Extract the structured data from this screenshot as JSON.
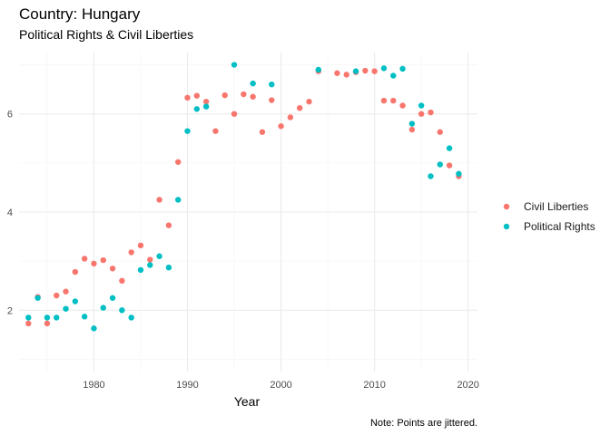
{
  "chart_data": {
    "type": "scatter",
    "title": "Country: Hungary",
    "subtitle": "Political Rights & Civil Liberties",
    "xlabel": "Year",
    "ylabel": "",
    "caption": "Note: Points are jittered.",
    "xlim": [
      1972,
      2021
    ],
    "ylim": [
      0.75,
      7.25
    ],
    "xticks": [
      1980,
      1990,
      2000,
      2010,
      2020
    ],
    "yticks": [
      2,
      4,
      6
    ],
    "grid": true,
    "legend_position": "right",
    "series": [
      {
        "name": "Civil Liberties",
        "color": "#F8766D",
        "points": [
          [
            1973,
            1.73
          ],
          [
            1974,
            2.27
          ],
          [
            1975,
            1.73
          ],
          [
            1976,
            2.3
          ],
          [
            1977,
            2.38
          ],
          [
            1978,
            2.78
          ],
          [
            1979,
            3.05
          ],
          [
            1980,
            2.95
          ],
          [
            1981,
            3.02
          ],
          [
            1982,
            2.85
          ],
          [
            1983,
            2.6
          ],
          [
            1984,
            3.18
          ],
          [
            1985,
            3.32
          ],
          [
            1986,
            3.03
          ],
          [
            1987,
            4.25
          ],
          [
            1988,
            3.73
          ],
          [
            1989,
            5.02
          ],
          [
            1990,
            6.33
          ],
          [
            1991,
            6.37
          ],
          [
            1992,
            6.25
          ],
          [
            1993,
            5.65
          ],
          [
            1994,
            6.38
          ],
          [
            1995,
            6.0
          ],
          [
            1996,
            6.4
          ],
          [
            1997,
            6.35
          ],
          [
            1998,
            5.63
          ],
          [
            1999,
            6.28
          ],
          [
            2000,
            5.75
          ],
          [
            2001,
            5.93
          ],
          [
            2002,
            6.12
          ],
          [
            2003,
            6.25
          ],
          [
            2004,
            6.87
          ],
          [
            2006,
            6.83
          ],
          [
            2007,
            6.8
          ],
          [
            2008,
            6.85
          ],
          [
            2009,
            6.88
          ],
          [
            2010,
            6.87
          ],
          [
            2011,
            6.27
          ],
          [
            2012,
            6.27
          ],
          [
            2013,
            6.17
          ],
          [
            2014,
            5.68
          ],
          [
            2015,
            6.0
          ],
          [
            2016,
            6.03
          ],
          [
            2017,
            5.63
          ],
          [
            2018,
            4.95
          ],
          [
            2019,
            4.73
          ]
        ]
      },
      {
        "name": "Political Rights",
        "color": "#00BFC4",
        "points": [
          [
            1973,
            1.85
          ],
          [
            1974,
            2.25
          ],
          [
            1975,
            1.85
          ],
          [
            1976,
            1.85
          ],
          [
            1977,
            2.03
          ],
          [
            1978,
            2.18
          ],
          [
            1979,
            1.87
          ],
          [
            1980,
            1.63
          ],
          [
            1981,
            2.05
          ],
          [
            1982,
            2.25
          ],
          [
            1983,
            2.0
          ],
          [
            1984,
            1.85
          ],
          [
            1985,
            2.82
          ],
          [
            1986,
            2.92
          ],
          [
            1987,
            3.1
          ],
          [
            1988,
            2.87
          ],
          [
            1989,
            4.25
          ],
          [
            1990,
            5.65
          ],
          [
            1991,
            6.1
          ],
          [
            1992,
            6.15
          ],
          [
            1995,
            7.0
          ],
          [
            1997,
            6.62
          ],
          [
            1999,
            6.6
          ],
          [
            2004,
            6.9
          ],
          [
            2008,
            6.87
          ],
          [
            2011,
            6.93
          ],
          [
            2012,
            6.78
          ],
          [
            2013,
            6.92
          ],
          [
            2014,
            5.8
          ],
          [
            2015,
            6.17
          ],
          [
            2016,
            4.73
          ],
          [
            2017,
            4.97
          ],
          [
            2018,
            5.3
          ],
          [
            2019,
            4.78
          ]
        ]
      }
    ]
  }
}
